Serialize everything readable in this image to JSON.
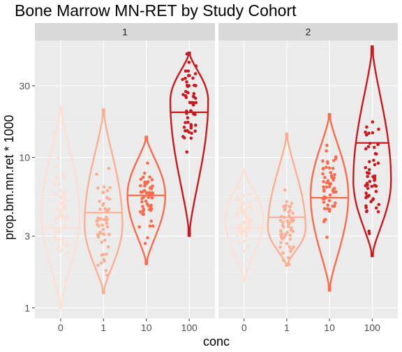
{
  "chart_data": {
    "type": "violin",
    "title": "Bone Marrow MN-RET by Study Cohort",
    "xlabel": "conc",
    "ylabel": "prop.bm.mn.ret * 1000",
    "y_scale": "log10",
    "ylim": [
      0.85,
      60
    ],
    "y_ticks": [
      {
        "value": 1,
        "label": "1"
      },
      {
        "value": 3,
        "label": "3"
      },
      {
        "value": 10,
        "label": "10"
      },
      {
        "value": 30,
        "label": "30"
      }
    ],
    "categories": [
      "0",
      "1",
      "10",
      "100"
    ],
    "colors": [
      "#fee0d2",
      "#fcae91",
      "#fb6a4a",
      "#cb181d"
    ],
    "panel_background": "#ebebeb",
    "strip_background": "#d9d9d9",
    "grid": true,
    "legend": "none",
    "facets": [
      {
        "label": "1",
        "groups": [
          {
            "category": "0",
            "min": 1.0,
            "max": 22.0,
            "median": 3.4,
            "mode": 4.2,
            "max_width": 0.45
          },
          {
            "category": "1",
            "min": 1.25,
            "max": 21.0,
            "median": 4.3,
            "mode": 3.6,
            "max_width": 0.45
          },
          {
            "category": "10",
            "min": 1.95,
            "max": 13.8,
            "median": 5.6,
            "mode": 5.6,
            "max_width": 0.45
          },
          {
            "category": "100",
            "min": 3.0,
            "max": 50.0,
            "median": 20.0,
            "mode": 24.0,
            "max_width": 0.45
          }
        ]
      },
      {
        "label": "2",
        "groups": [
          {
            "category": "0",
            "min": 1.5,
            "max": 8.4,
            "median": 3.4,
            "mode": 3.9,
            "max_width": 0.45
          },
          {
            "category": "1",
            "min": 1.9,
            "max": 14.5,
            "median": 4.0,
            "mode": 3.4,
            "max_width": 0.45
          },
          {
            "category": "10",
            "min": 1.3,
            "max": 19.5,
            "median": 5.4,
            "mode": 5.6,
            "max_width": 0.45
          },
          {
            "category": "100",
            "min": 2.2,
            "max": 55.0,
            "median": 12.5,
            "mode": 7.0,
            "max_width": 0.45
          }
        ]
      }
    ]
  }
}
